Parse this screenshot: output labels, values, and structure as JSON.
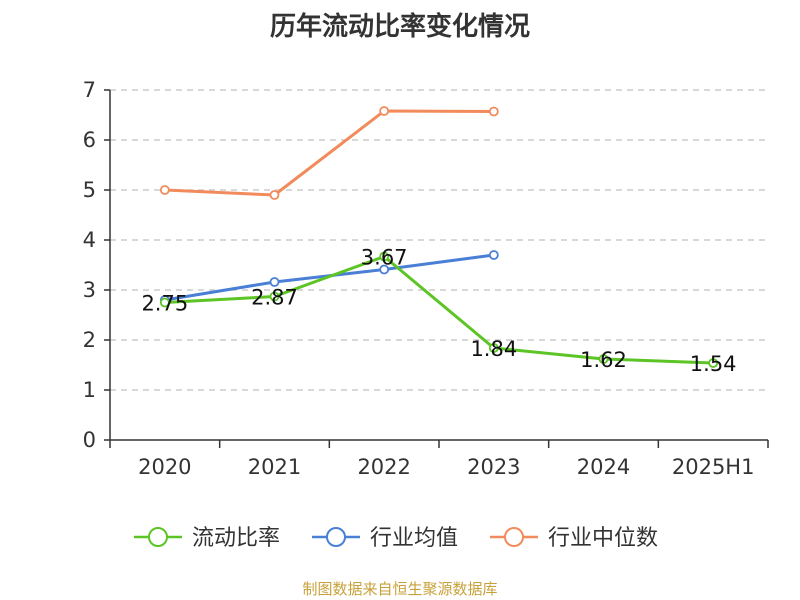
{
  "title": "历年流动比率变化情况",
  "source": "制图数据来自恒生聚源数据库",
  "chart_data": {
    "type": "line",
    "categories": [
      "2020",
      "2021",
      "2022",
      "2023",
      "2024",
      "2025H1"
    ],
    "ylim": [
      0,
      7
    ],
    "yticks": [
      0,
      1,
      2,
      3,
      4,
      5,
      6,
      7
    ],
    "grid": true,
    "legend_position": "bottom",
    "series": [
      {
        "name": "流动比率",
        "color": "#5cc424",
        "values": [
          2.75,
          2.87,
          3.67,
          1.84,
          1.62,
          1.54
        ],
        "labels": [
          "2.75",
          "2.87",
          "3.67",
          "1.84",
          "1.62",
          "1.54"
        ]
      },
      {
        "name": "行业均值",
        "color": "#4a7fd6",
        "values": [
          2.8,
          3.16,
          3.41,
          3.7,
          null,
          null
        ]
      },
      {
        "name": "行业中位数",
        "color": "#f28b5b",
        "values": [
          5.0,
          4.9,
          6.58,
          6.57,
          null,
          null
        ]
      }
    ]
  }
}
